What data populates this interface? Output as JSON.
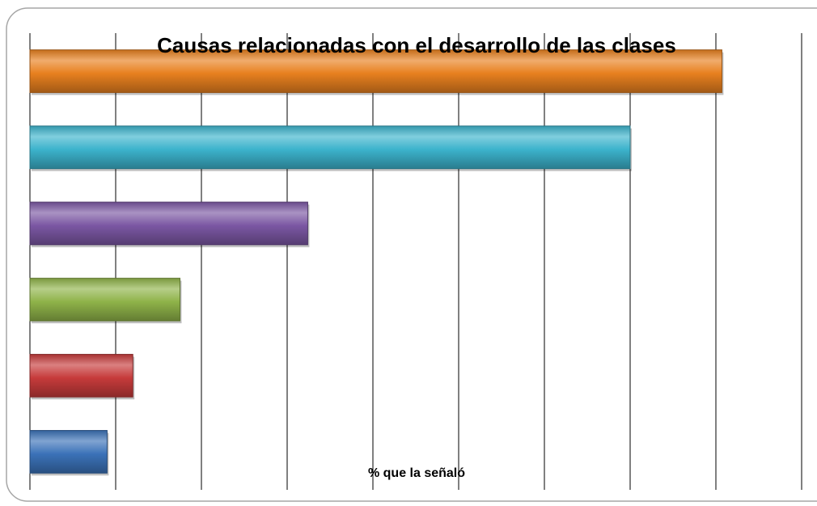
{
  "chart_data": {
    "type": "barh",
    "title": "Causas relacionadas con el desarrollo de las clases",
    "x_label": "% que la señaló",
    "series": [
      {
        "color": "#e8801f",
        "values": [
          8.07
        ]
      },
      {
        "color": "#3cb3cc",
        "values": [
          7.0
        ]
      },
      {
        "color": "#7b57a3",
        "values": [
          3.24
        ]
      },
      {
        "color": "#8fb349",
        "values": [
          1.75
        ]
      },
      {
        "color": "#c63b3b",
        "values": [
          1.2
        ]
      },
      {
        "color": "#3b72b8",
        "values": [
          0.9
        ]
      }
    ],
    "xlim": [
      0,
      9
    ],
    "xticks": [
      0,
      1,
      2,
      3,
      4,
      5,
      6,
      7,
      8,
      9
    ],
    "grid": true
  }
}
